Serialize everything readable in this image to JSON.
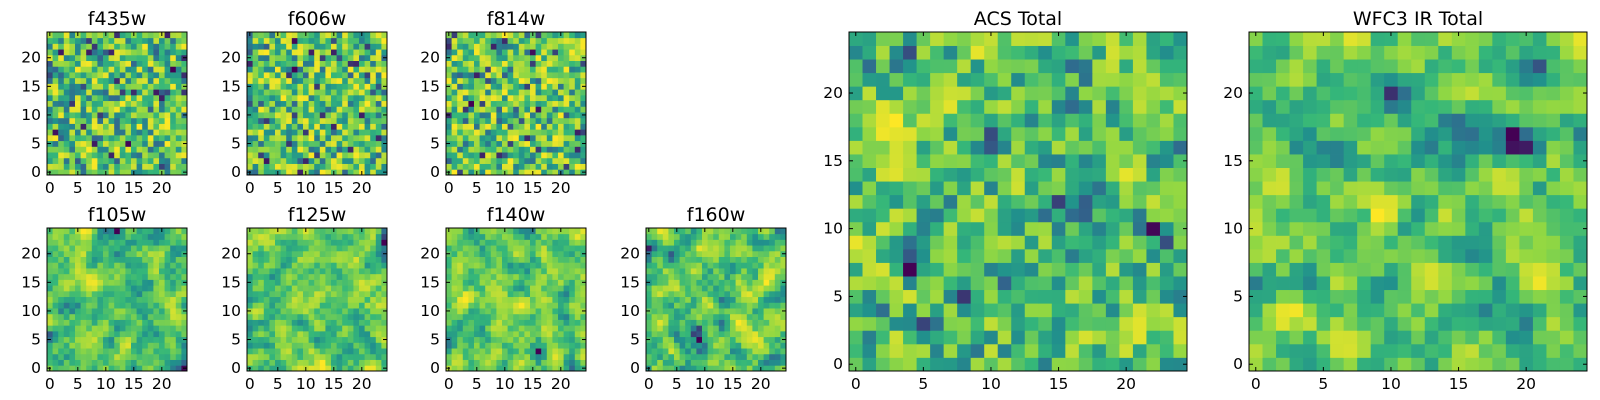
{
  "figure_colors": {
    "background": "#ffffff",
    "frame": "#000000",
    "viridis": [
      "#440154",
      "#31688e",
      "#21918c",
      "#35b779",
      "#90d743",
      "#fde725"
    ]
  },
  "chart_data": [
    {
      "type": "heatmap",
      "title": "f435w",
      "size": 25,
      "style": "noisy",
      "seed": 11,
      "xticks": [
        "0",
        "5",
        "10",
        "15",
        "20"
      ],
      "yticks": [
        "0",
        "5",
        "10",
        "15",
        "20"
      ],
      "xlim": [
        -0.5,
        24.5
      ],
      "ylim": [
        -0.5,
        24.5
      ],
      "value_range": [
        0,
        1
      ],
      "colormap": "viridis"
    },
    {
      "type": "heatmap",
      "title": "f606w",
      "size": 25,
      "style": "noisy",
      "seed": 23,
      "xticks": [
        "0",
        "5",
        "10",
        "15",
        "20"
      ],
      "yticks": [
        "0",
        "5",
        "10",
        "15",
        "20"
      ],
      "xlim": [
        -0.5,
        24.5
      ],
      "ylim": [
        -0.5,
        24.5
      ],
      "value_range": [
        0,
        1
      ],
      "colormap": "viridis"
    },
    {
      "type": "heatmap",
      "title": "f814w",
      "size": 25,
      "style": "noisy",
      "seed": 37,
      "xticks": [
        "0",
        "5",
        "10",
        "15",
        "20"
      ],
      "yticks": [
        "0",
        "5",
        "10",
        "15",
        "20"
      ],
      "xlim": [
        -0.5,
        24.5
      ],
      "ylim": [
        -0.5,
        24.5
      ],
      "value_range": [
        0,
        1
      ],
      "colormap": "viridis"
    },
    {
      "type": "heatmap",
      "title": "f105w",
      "size": 25,
      "style": "smooth",
      "seed": 41,
      "xticks": [
        "0",
        "5",
        "10",
        "15",
        "20"
      ],
      "yticks": [
        "0",
        "5",
        "10",
        "15",
        "20"
      ],
      "xlim": [
        -0.5,
        24.5
      ],
      "ylim": [
        -0.5,
        24.5
      ],
      "value_range": [
        0,
        1
      ],
      "colormap": "viridis"
    },
    {
      "type": "heatmap",
      "title": "f125w",
      "size": 25,
      "style": "smooth",
      "seed": 53,
      "xticks": [
        "0",
        "5",
        "10",
        "15",
        "20"
      ],
      "yticks": [
        "0",
        "5",
        "10",
        "15",
        "20"
      ],
      "xlim": [
        -0.5,
        24.5
      ],
      "ylim": [
        -0.5,
        24.5
      ],
      "value_range": [
        0,
        1
      ],
      "colormap": "viridis"
    },
    {
      "type": "heatmap",
      "title": "f140w",
      "size": 25,
      "style": "smooth",
      "seed": 67,
      "xticks": [
        "0",
        "5",
        "10",
        "15",
        "20"
      ],
      "yticks": [
        "0",
        "5",
        "10",
        "15",
        "20"
      ],
      "xlim": [
        -0.5,
        24.5
      ],
      "ylim": [
        -0.5,
        24.5
      ],
      "value_range": [
        0,
        1
      ],
      "colormap": "viridis"
    },
    {
      "type": "heatmap",
      "title": "f160w",
      "size": 25,
      "style": "smooth",
      "seed": 79,
      "xticks": [
        "0",
        "5",
        "10",
        "15",
        "20"
      ],
      "yticks": [
        "0",
        "5",
        "10",
        "15",
        "20"
      ],
      "xlim": [
        -0.5,
        24.5
      ],
      "ylim": [
        -0.5,
        24.5
      ],
      "value_range": [
        0,
        1
      ],
      "colormap": "viridis"
    },
    {
      "type": "heatmap",
      "title": "ACS Total",
      "size": 25,
      "style": "mixed",
      "seed": 83,
      "xticks": [
        "0",
        "5",
        "10",
        "15",
        "20"
      ],
      "yticks": [
        "0",
        "5",
        "10",
        "15",
        "20"
      ],
      "xlim": [
        -0.5,
        24.5
      ],
      "ylim": [
        -0.5,
        24.5
      ],
      "value_range": [
        0,
        1
      ],
      "colormap": "viridis"
    },
    {
      "type": "heatmap",
      "title": "WFC3 IR Total",
      "size": 25,
      "style": "smooth",
      "seed": 97,
      "xticks": [
        "0",
        "5",
        "10",
        "15",
        "20"
      ],
      "yticks": [
        "0",
        "5",
        "10",
        "15",
        "20"
      ],
      "xlim": [
        -0.5,
        24.5
      ],
      "ylim": [
        -0.5,
        24.5
      ],
      "value_range": [
        0,
        1
      ],
      "colormap": "viridis"
    }
  ]
}
